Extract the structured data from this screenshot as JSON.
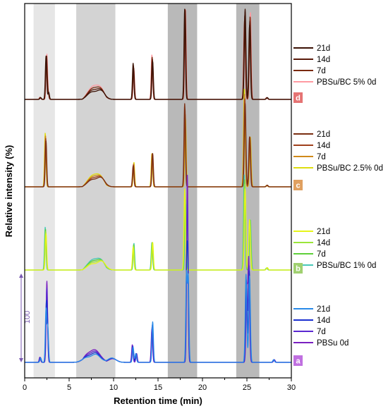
{
  "chart_data": {
    "type": "line",
    "title": "",
    "xlabel": "Retention time (min)",
    "ylabel": "Relative intensity (%)",
    "xlim": [
      0,
      30
    ],
    "xticks": [
      "0",
      "5",
      "10",
      "15",
      "20",
      "25",
      "30"
    ],
    "grid": false,
    "scale_bar_label": "100",
    "shaded_regions": [
      {
        "range": [
          1.0,
          3.4
        ],
        "shade": "light"
      },
      {
        "range": [
          5.8,
          10.2
        ],
        "shade": "medium"
      },
      {
        "range": [
          16.1,
          19.4
        ],
        "shade": "dark"
      },
      {
        "range": [
          23.8,
          26.4
        ],
        "shade": "dark"
      }
    ],
    "panels": [
      {
        "badge": "d",
        "badge_color": "#e57373",
        "series": [
          {
            "name": "21d",
            "color": "#3b1205"
          },
          {
            "name": "14d",
            "color": "#5a1a0a"
          },
          {
            "name": "7d",
            "color": "#7a2a10"
          },
          {
            "name": "PBSu/BC 5% 0d",
            "color": "#ff9aa2"
          }
        ],
        "peaks": [
          [
            1.8,
            2
          ],
          [
            2.4,
            48
          ],
          [
            2.7,
            8
          ],
          [
            7.5,
            5
          ],
          [
            8.6,
            8
          ],
          [
            12.2,
            40
          ],
          [
            14.4,
            42
          ],
          [
            18.0,
            100
          ],
          [
            24.8,
            100
          ],
          [
            25.3,
            82
          ],
          [
            27.3,
            2
          ]
        ]
      },
      {
        "badge": "c",
        "badge_color": "#e0a060",
        "series": [
          {
            "name": "21d",
            "color": "#7a2e12"
          },
          {
            "name": "14d",
            "color": "#a0401c"
          },
          {
            "name": "7d",
            "color": "#d08a1a"
          },
          {
            "name": "PBSu/BC 2.5% 0d",
            "color": "#dede10"
          }
        ],
        "peaks": [
          [
            2.4,
            55
          ],
          [
            7.5,
            5
          ],
          [
            8.6,
            9
          ],
          [
            12.2,
            25
          ],
          [
            14.4,
            40
          ],
          [
            18.0,
            100
          ],
          [
            24.8,
            100
          ],
          [
            25.3,
            60
          ],
          [
            27.3,
            2
          ]
        ]
      },
      {
        "badge": "b",
        "badge_color": "#a0d070",
        "series": [
          {
            "name": "21d",
            "color": "#e6f51a"
          },
          {
            "name": "14d",
            "color": "#9be63a"
          },
          {
            "name": "7d",
            "color": "#5fd03a"
          },
          {
            "name": "PBSu/BC 1% 0d",
            "color": "#49c9b8"
          }
        ],
        "peaks": [
          [
            2.4,
            45
          ],
          [
            7.5,
            4
          ],
          [
            8.7,
            9
          ],
          [
            12.2,
            28
          ],
          [
            14.4,
            34
          ],
          [
            18.0,
            100
          ],
          [
            24.8,
            100
          ],
          [
            25.3,
            62
          ],
          [
            27.3,
            3
          ]
        ]
      },
      {
        "badge": "a",
        "badge_color": "#c070e0",
        "series": [
          {
            "name": "21d",
            "color": "#2a8be8"
          },
          {
            "name": "14d",
            "color": "#1a2fd0"
          },
          {
            "name": "7d",
            "color": "#5a28d0"
          },
          {
            "name": "PBSu 0d",
            "color": "#7a20c0"
          }
        ],
        "peaks": [
          [
            1.8,
            5
          ],
          [
            2.4,
            60
          ],
          [
            2.6,
            40
          ],
          [
            6.8,
            4
          ],
          [
            8.0,
            6
          ],
          [
            9.8,
            5
          ],
          [
            12.2,
            17
          ],
          [
            12.5,
            10
          ],
          [
            14.4,
            46
          ],
          [
            18.2,
            100
          ],
          [
            18.4,
            96
          ],
          [
            24.9,
            100
          ],
          [
            25.3,
            98
          ],
          [
            28.0,
            3
          ]
        ]
      }
    ]
  }
}
